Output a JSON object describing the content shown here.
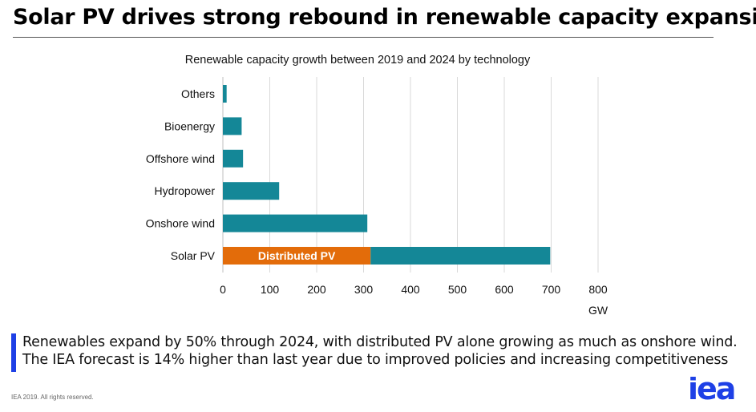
{
  "page_title": "Solar PV drives strong rebound in renewable capacity expansion",
  "caption": {
    "line1": "Renewables expand by 50% through 2024, with distributed PV alone growing as much as onshore wind.",
    "line2": "The IEA forecast is 14% higher than last year due to improved policies and increasing competitiveness"
  },
  "footer_note": "IEA 2019. All rights reserved.",
  "logo_text": "iea",
  "colors": {
    "primary": "#148797",
    "distributed": "#e36c0a",
    "accent_bar": "#1e40e6",
    "logo": "#1e40e6"
  },
  "chart_data": {
    "type": "bar",
    "orientation": "horizontal",
    "stacked": true,
    "title": "Renewable capacity growth between 2019 and 2024 by technology",
    "xlabel": "GW",
    "xlim": [
      0,
      800
    ],
    "xticks": [
      0,
      100,
      200,
      300,
      400,
      500,
      600,
      700,
      800
    ],
    "grid": true,
    "categories": [
      "Others",
      "Bioenergy",
      "Offshore wind",
      "Hydropower",
      "Onshore wind",
      "Solar PV"
    ],
    "series": [
      {
        "name": "Distributed PV",
        "color": "#e36c0a",
        "values": [
          0,
          0,
          0,
          0,
          0,
          315
        ]
      },
      {
        "name": "",
        "color": "#148797",
        "values": [
          8,
          40,
          43,
          120,
          308,
          383
        ]
      }
    ],
    "annotations": [
      {
        "text": "Distributed PV",
        "category": "Solar PV",
        "series": 0
      }
    ]
  }
}
